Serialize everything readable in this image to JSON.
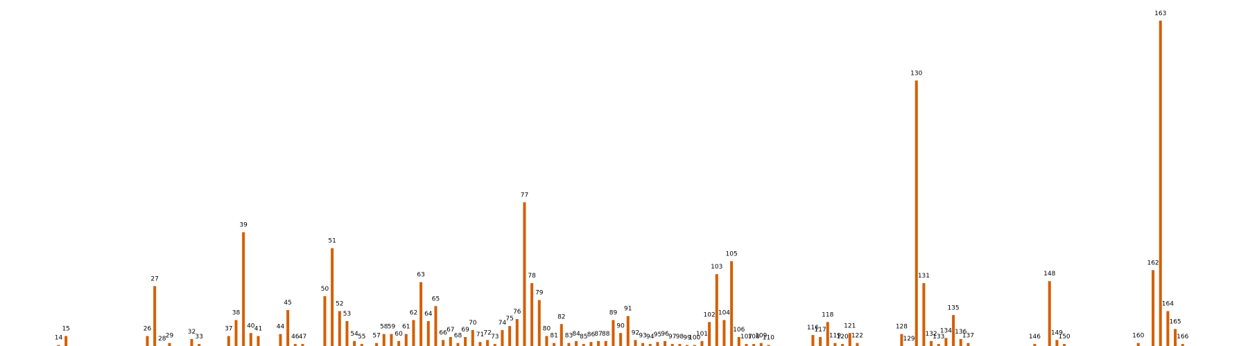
{
  "chart_data": {
    "type": "bar",
    "title": "",
    "xlabel": "",
    "ylabel": "",
    "xlim": [
      0,
      168
    ],
    "ylim": [
      0,
      165
    ],
    "grid": false,
    "legend": "none",
    "colors": {
      "bar": "#D55E00"
    },
    "points": [
      {
        "x": 14,
        "y": 0.5
      },
      {
        "x": 15,
        "y": 5
      },
      {
        "x": 26,
        "y": 5
      },
      {
        "x": 27,
        "y": 30
      },
      {
        "x": 28,
        "y": 0
      },
      {
        "x": 29,
        "y": 1.5
      },
      {
        "x": 32,
        "y": 3.5
      },
      {
        "x": 33,
        "y": 1
      },
      {
        "x": 37,
        "y": 5
      },
      {
        "x": 38,
        "y": 13
      },
      {
        "x": 39,
        "y": 57
      },
      {
        "x": 40,
        "y": 6.5
      },
      {
        "x": 41,
        "y": 5
      },
      {
        "x": 44,
        "y": 6
      },
      {
        "x": 45,
        "y": 18
      },
      {
        "x": 46,
        "y": 1
      },
      {
        "x": 47,
        "y": 1
      },
      {
        "x": 50,
        "y": 25
      },
      {
        "x": 51,
        "y": 49
      },
      {
        "x": 52,
        "y": 17.5
      },
      {
        "x": 53,
        "y": 12.5
      },
      {
        "x": 54,
        "y": 2.5
      },
      {
        "x": 55,
        "y": 1
      },
      {
        "x": 57,
        "y": 1.5
      },
      {
        "x": 58,
        "y": 6
      },
      {
        "x": 59,
        "y": 6
      },
      {
        "x": 60,
        "y": 2.5
      },
      {
        "x": 61,
        "y": 6
      },
      {
        "x": 62,
        "y": 13
      },
      {
        "x": 63,
        "y": 32
      },
      {
        "x": 64,
        "y": 12.5
      },
      {
        "x": 65,
        "y": 20
      },
      {
        "x": 66,
        "y": 3
      },
      {
        "x": 67,
        "y": 4.5
      },
      {
        "x": 68,
        "y": 1.5
      },
      {
        "x": 69,
        "y": 4.5
      },
      {
        "x": 70,
        "y": 8
      },
      {
        "x": 71,
        "y": 2
      },
      {
        "x": 72,
        "y": 3
      },
      {
        "x": 73,
        "y": 1
      },
      {
        "x": 74,
        "y": 8
      },
      {
        "x": 75,
        "y": 10
      },
      {
        "x": 76,
        "y": 13.5
      },
      {
        "x": 77,
        "y": 72
      },
      {
        "x": 78,
        "y": 31.5
      },
      {
        "x": 79,
        "y": 23
      },
      {
        "x": 80,
        "y": 5
      },
      {
        "x": 81,
        "y": 1.5
      },
      {
        "x": 82,
        "y": 11
      },
      {
        "x": 83,
        "y": 1.5
      },
      {
        "x": 84,
        "y": 2.5
      },
      {
        "x": 85,
        "y": 1
      },
      {
        "x": 86,
        "y": 2
      },
      {
        "x": 87,
        "y": 2.5
      },
      {
        "x": 88,
        "y": 2.5
      },
      {
        "x": 89,
        "y": 13
      },
      {
        "x": 90,
        "y": 6.5
      },
      {
        "x": 91,
        "y": 15
      },
      {
        "x": 92,
        "y": 3
      },
      {
        "x": 93,
        "y": 1.5
      },
      {
        "x": 94,
        "y": 1
      },
      {
        "x": 95,
        "y": 2
      },
      {
        "x": 96,
        "y": 2.5
      },
      {
        "x": 97,
        "y": 1
      },
      {
        "x": 98,
        "y": 1
      },
      {
        "x": 99,
        "y": 0.5
      },
      {
        "x": 100,
        "y": 0.5
      },
      {
        "x": 101,
        "y": 2.5
      },
      {
        "x": 102,
        "y": 12
      },
      {
        "x": 103,
        "y": 36
      },
      {
        "x": 104,
        "y": 13
      },
      {
        "x": 105,
        "y": 42.5
      },
      {
        "x": 106,
        "y": 4.5
      },
      {
        "x": 107,
        "y": 1
      },
      {
        "x": 108,
        "y": 1
      },
      {
        "x": 109,
        "y": 1.5
      },
      {
        "x": 110,
        "y": 0.5
      },
      {
        "x": 116,
        "y": 5.5
      },
      {
        "x": 117,
        "y": 4.5
      },
      {
        "x": 118,
        "y": 12
      },
      {
        "x": 119,
        "y": 1.5
      },
      {
        "x": 120,
        "y": 1
      },
      {
        "x": 121,
        "y": 6.5
      },
      {
        "x": 122,
        "y": 1.5
      },
      {
        "x": 128,
        "y": 6
      },
      {
        "x": 129,
        "y": 0
      },
      {
        "x": 130,
        "y": 133
      },
      {
        "x": 131,
        "y": 31.5
      },
      {
        "x": 132,
        "y": 2.5
      },
      {
        "x": 133,
        "y": 1
      },
      {
        "x": 134,
        "y": 4
      },
      {
        "x": 135,
        "y": 15.5
      },
      {
        "x": 136,
        "y": 3.5
      },
      {
        "x": 137,
        "y": 1.5
      },
      {
        "x": 146,
        "y": 1
      },
      {
        "x": 148,
        "y": 32.5
      },
      {
        "x": 149,
        "y": 3
      },
      {
        "x": 150,
        "y": 1
      },
      {
        "x": 160,
        "y": 1.5
      },
      {
        "x": 162,
        "y": 38
      },
      {
        "x": 163,
        "y": 163
      },
      {
        "x": 164,
        "y": 17.5
      },
      {
        "x": 165,
        "y": 8.5
      },
      {
        "x": 166,
        "y": 1
      }
    ]
  }
}
